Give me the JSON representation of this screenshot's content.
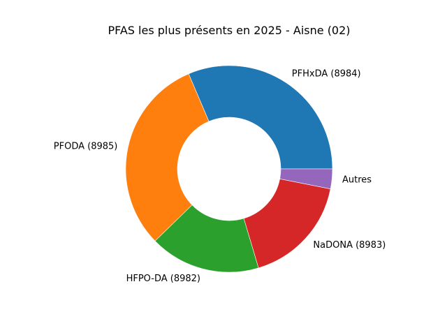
{
  "chart_data": {
    "type": "pie",
    "title": "PFAS les plus présents en 2025 - Aisne (02)",
    "labels": [
      "PFHxDA (8984)",
      "PFODA (8985)",
      "HFPO-DA (8982)",
      "NaDONA (8983)",
      "Autres"
    ],
    "values": [
      31.4,
      30.9,
      17.3,
      17.3,
      3.1
    ],
    "colors": [
      "#1f77b4",
      "#ff7f0e",
      "#2ca02c",
      "#d62728",
      "#9467bd"
    ],
    "start_angle": 0,
    "direction": "counterclockwise",
    "donut": true,
    "legend": "none"
  }
}
